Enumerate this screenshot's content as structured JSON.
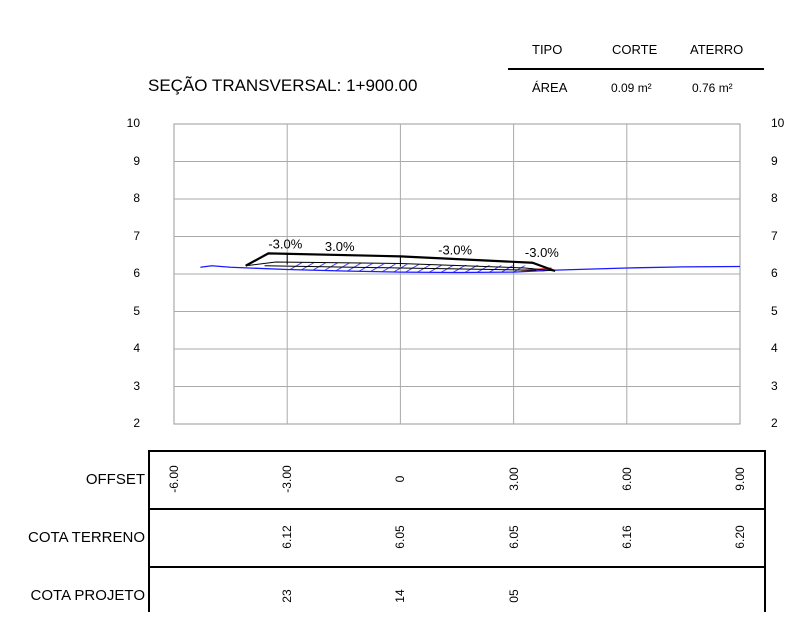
{
  "table": {
    "tipo_label": "TIPO",
    "corte_label": "CORTE",
    "aterro_label": "ATERRO",
    "area_label": "ÁREA",
    "corte_value": "0.09 m²",
    "aterro_value": "0.76 m²"
  },
  "title": "SEÇÃO TRANSVERSAL: 1+900.00",
  "y_ticks": [
    "10",
    "9",
    "8",
    "7",
    "6",
    "5",
    "4",
    "3",
    "2"
  ],
  "slopes": [
    "-3.0%",
    "3.0%",
    "-3.0%",
    "-3.0%"
  ],
  "rows": {
    "offset_label": "OFFSET",
    "cota_terreno_label": "COTA TERRENO",
    "cota_projeto_label": "COTA PROJETO",
    "offset_values": [
      "-6.00",
      "-3.00",
      "0",
      "3.00",
      "6.00",
      "9.00"
    ],
    "terreno_values": [
      "6.12",
      "6.05",
      "6.05",
      "6.16",
      "6.20"
    ],
    "projeto_values": [
      "23",
      "14",
      "05"
    ]
  },
  "chart_data": {
    "type": "line",
    "xlim": [
      -6,
      9
    ],
    "ylim": [
      2,
      10
    ],
    "x_ticks": [
      -6,
      -3,
      0,
      3,
      6,
      9
    ],
    "series": [
      {
        "x": [
          -5.3,
          -5.0,
          -4.5,
          -3.0,
          -1.5,
          0,
          1.5,
          3.0,
          4.0,
          6.0,
          7.5,
          9.0
        ],
        "y": [
          6.18,
          6.22,
          6.18,
          6.12,
          6.08,
          6.05,
          6.04,
          6.05,
          6.1,
          6.16,
          6.19,
          6.2
        ]
      },
      {
        "x": [
          -4.1,
          -3.5,
          0,
          3.5,
          4.1
        ],
        "y": [
          6.22,
          6.55,
          6.47,
          6.3,
          6.08
        ]
      }
    ]
  }
}
